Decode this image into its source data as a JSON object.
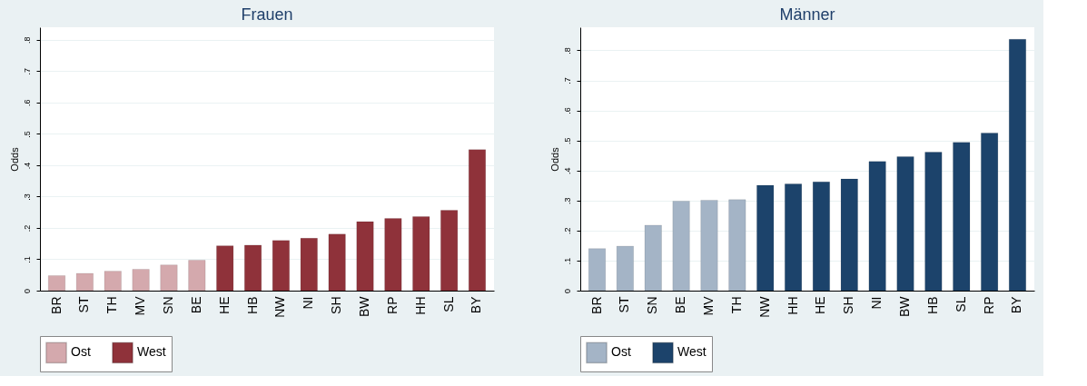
{
  "chart_data": [
    {
      "type": "bar",
      "title": "Frauen",
      "ylabel": "Odds",
      "categories": [
        "BR",
        "ST",
        "TH",
        "MV",
        "SN",
        "BE",
        "HE",
        "HB",
        "NW",
        "NI",
        "SH",
        "BW",
        "RP",
        "HH",
        "SL",
        "BY"
      ],
      "series": [
        {
          "name": "Ost",
          "color": "#d4a9ad",
          "values": [
            0.048,
            0.055,
            0.062,
            0.068,
            0.082,
            0.097,
            null,
            null,
            null,
            null,
            null,
            null,
            null,
            null,
            null,
            null
          ]
        },
        {
          "name": "West",
          "color": "#8f323a",
          "values": [
            null,
            null,
            null,
            null,
            null,
            null,
            0.143,
            0.145,
            0.16,
            0.167,
            0.18,
            0.22,
            0.23,
            0.236,
            0.256,
            0.45
          ]
        }
      ],
      "ylim": [
        0,
        0.84
      ],
      "yticks": [
        0,
        {
          "value": 0.1,
          "label": ".1"
        },
        {
          "value": 0.2,
          "label": ".2"
        },
        {
          "value": 0.3,
          "label": ".3"
        },
        {
          "value": 0.4,
          "label": ".4"
        },
        {
          "value": 0.5,
          "label": ".5"
        },
        {
          "value": 0.6,
          "label": ".6"
        },
        {
          "value": 0.7,
          "label": ".7"
        },
        {
          "value": 0.8,
          "label": ".8"
        }
      ],
      "grid": "y",
      "legend": "bottom"
    },
    {
      "type": "bar",
      "title": "Männer",
      "ylabel": "Odds",
      "categories": [
        "BR",
        "ST",
        "SN",
        "BE",
        "MV",
        "TH",
        "NW",
        "HH",
        "HE",
        "SH",
        "NI",
        "BW",
        "HB",
        "SL",
        "RP",
        "BY"
      ],
      "series": [
        {
          "name": "Ost",
          "color": "#a4b4c6",
          "values": [
            0.14,
            0.148,
            0.218,
            0.298,
            0.301,
            0.303,
            null,
            null,
            null,
            null,
            null,
            null,
            null,
            null,
            null,
            null
          ]
        },
        {
          "name": "West",
          "color": "#1c436b",
          "values": [
            null,
            null,
            null,
            null,
            null,
            null,
            0.351,
            0.355,
            0.362,
            0.372,
            0.43,
            0.446,
            0.461,
            0.494,
            0.525,
            0.837
          ]
        }
      ],
      "ylim": [
        0,
        0.877
      ],
      "yticks": [
        0,
        {
          "value": 0.1,
          "label": ".1"
        },
        {
          "value": 0.2,
          "label": ".2"
        },
        {
          "value": 0.3,
          "label": ".3"
        },
        {
          "value": 0.4,
          "label": ".4"
        },
        {
          "value": 0.5,
          "label": ".5"
        },
        {
          "value": 0.6,
          "label": ".6"
        },
        {
          "value": 0.7,
          "label": ".7"
        },
        {
          "value": 0.8,
          "label": ".8"
        }
      ],
      "grid": "y",
      "legend": "bottom"
    }
  ]
}
